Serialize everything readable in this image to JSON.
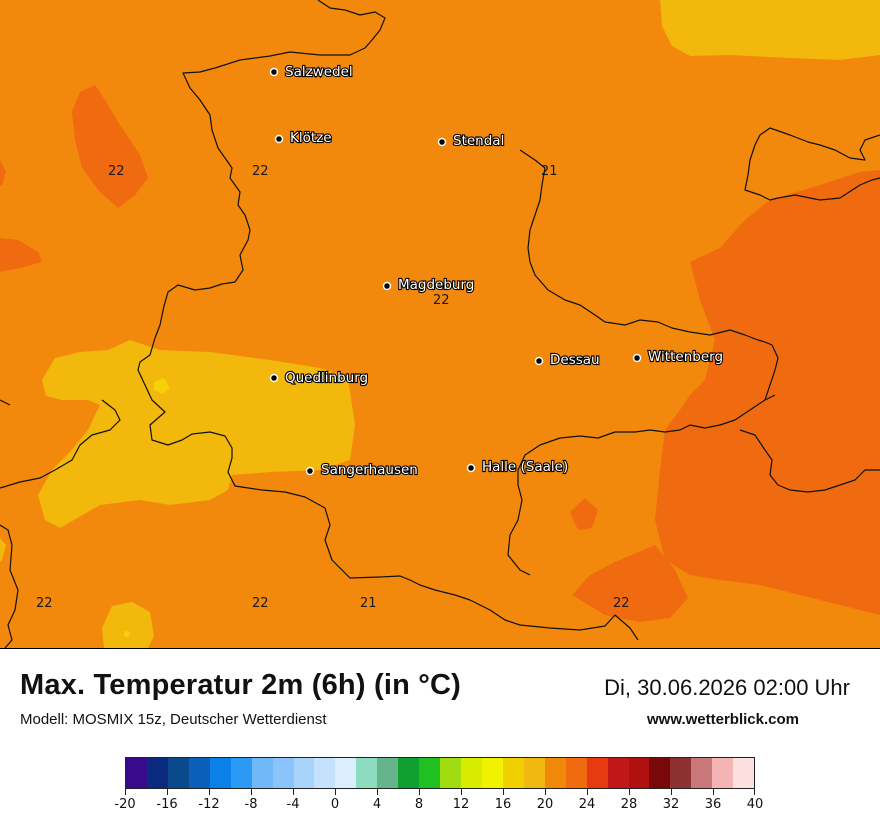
{
  "title": "Max. Temperatur 2m (6h) (in °C)",
  "subtitle": "Modell: MOSMIX 15z, Deutscher Wetterdienst",
  "datetime": "Di, 30.06.2026 02:00 Uhr",
  "website": "www.wetterblick.com",
  "cities": [
    {
      "id": "salzwedel",
      "name": "Salzwedel"
    },
    {
      "id": "kloetze",
      "name": "Klötze"
    },
    {
      "id": "stendal",
      "name": "Stendal"
    },
    {
      "id": "magdeburg",
      "name": "Magdeburg"
    },
    {
      "id": "dessau",
      "name": "Dessau"
    },
    {
      "id": "wittenberg",
      "name": "Wittenberg"
    },
    {
      "id": "quedlinburg",
      "name": "Quedlinburg"
    },
    {
      "id": "sangerhausen",
      "name": "Sangerhausen"
    },
    {
      "id": "halle",
      "name": "Halle (Saale)"
    }
  ],
  "isoline_labels": [
    "22",
    "22",
    "21",
    "22",
    "22",
    "22",
    "21",
    "22"
  ],
  "legend": {
    "ticks": [
      "-20",
      "-16",
      "-12",
      "-8",
      "-4",
      "0",
      "4",
      "8",
      "12",
      "16",
      "20",
      "24",
      "28",
      "32",
      "36",
      "40"
    ],
    "colors": [
      "#3a0a8c",
      "#0a2a80",
      "#0a4a8c",
      "#0a60b8",
      "#0a80e8",
      "#2a9af5",
      "#70b8f8",
      "#8ac4fa",
      "#a8d4fb",
      "#c4e2fc",
      "#dceefe",
      "#8edcc0",
      "#66b48c",
      "#10a030",
      "#20c020",
      "#a0dc10",
      "#d8ec00",
      "#f2f200",
      "#f0d000",
      "#f0b810",
      "#f0880a",
      "#f06a10",
      "#e83a10",
      "#c01818",
      "#b01010",
      "#7a0808",
      "#8c3030",
      "#c87878",
      "#f4b4b4",
      "#fce0e0"
    ]
  },
  "map_colors": {
    "base": "#f2880c",
    "warm": "#f06a10",
    "cool": "#f2b80c",
    "border": "#111111"
  }
}
